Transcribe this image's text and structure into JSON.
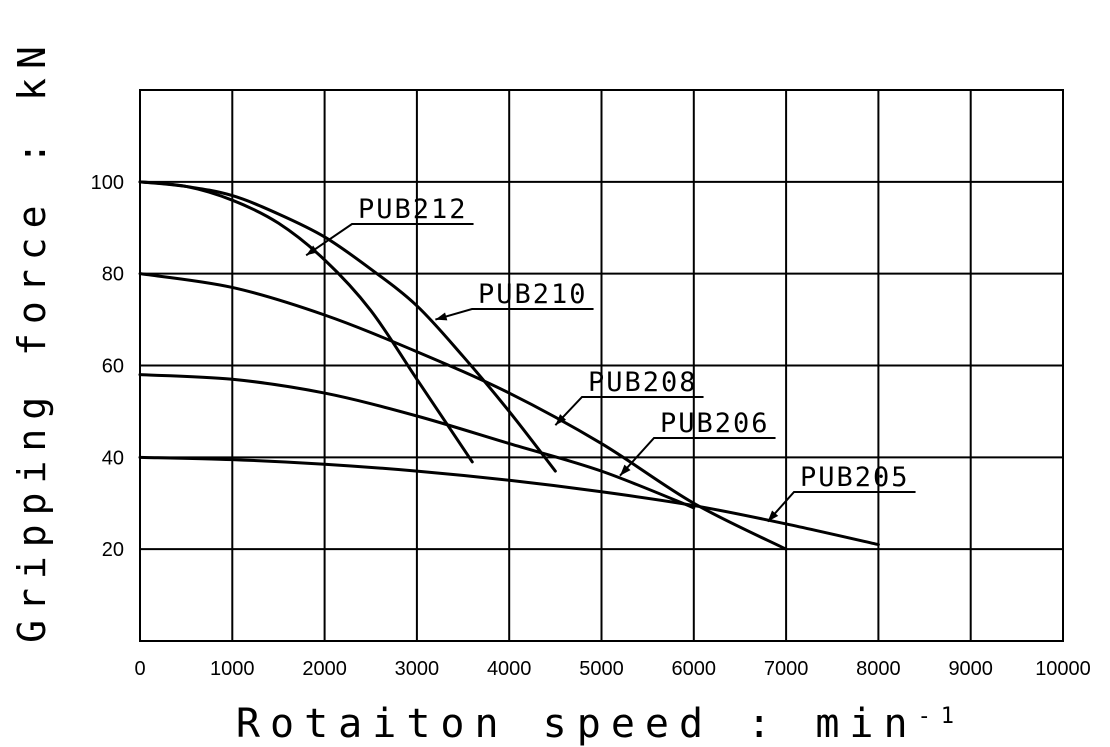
{
  "chart_data": {
    "type": "line",
    "xlabel": "Rotaiton speed : min",
    "xlabel_sup": "-1",
    "ylabel": "Gripping force : kN",
    "xlim": [
      0,
      10000
    ],
    "ylim": [
      0,
      120
    ],
    "grid": true,
    "x_ticks": [
      "0",
      "1000",
      "2000",
      "3000",
      "4000",
      "5000",
      "6000",
      "7000",
      "8000",
      "9000",
      "10000"
    ],
    "y_ticks": [
      "20",
      "40",
      "60",
      "80",
      "100"
    ],
    "series": [
      {
        "name": "PUB212",
        "x": [
          0,
          500,
          1000,
          1500,
          2000,
          2500,
          3000,
          3600
        ],
        "y": [
          100,
          99,
          96,
          91,
          83,
          72,
          57,
          39
        ]
      },
      {
        "name": "PUB210",
        "x": [
          0,
          500,
          1000,
          1500,
          2000,
          2500,
          3000,
          3500,
          4000,
          4500
        ],
        "y": [
          100,
          99,
          97,
          93,
          88,
          81,
          73,
          62,
          50,
          37
        ]
      },
      {
        "name": "PUB208",
        "x": [
          0,
          1000,
          2000,
          3000,
          4000,
          5000,
          6000,
          7000
        ],
        "y": [
          80,
          77,
          71,
          63,
          54,
          43,
          30,
          20
        ]
      },
      {
        "name": "PUB206",
        "x": [
          0,
          1000,
          2000,
          3000,
          4000,
          5000,
          6000
        ],
        "y": [
          58,
          57,
          54,
          49,
          43,
          37,
          29
        ]
      },
      {
        "name": "PUB205",
        "x": [
          0,
          1000,
          2000,
          3000,
          4000,
          5000,
          6000,
          7000,
          8000
        ],
        "y": [
          40,
          39.5,
          38.5,
          37,
          35,
          32.5,
          29.5,
          25.5,
          21
        ]
      }
    ]
  }
}
